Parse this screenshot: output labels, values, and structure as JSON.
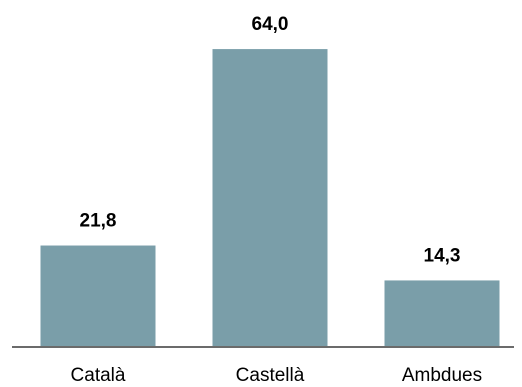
{
  "chart_data": {
    "type": "bar",
    "categories": [
      "Català",
      "Castellà",
      "Ambdues"
    ],
    "values": [
      21.8,
      64.0,
      14.3
    ],
    "value_labels": [
      "21,8",
      "64,0",
      "14,3"
    ],
    "title": "",
    "xlabel": "",
    "ylabel": "",
    "ylim": [
      0,
      70
    ],
    "grid": false,
    "legend": "none",
    "bar_color": "#7a9ea9"
  }
}
